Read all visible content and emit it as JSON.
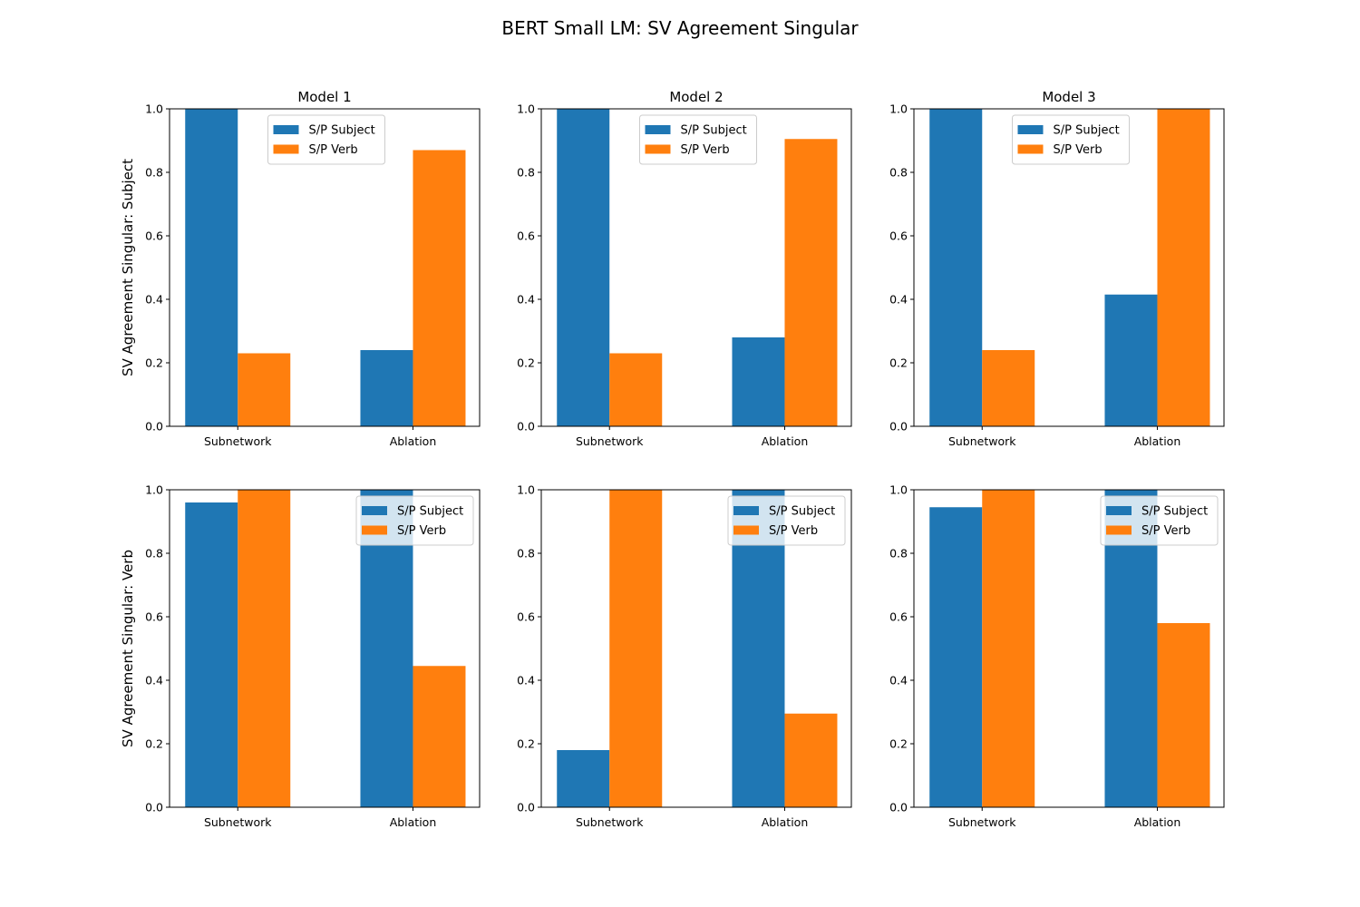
{
  "figure": {
    "title": "BERT Small LM: SV Agreement Singular"
  },
  "colors": {
    "S/P Subject": "#1f77b4",
    "S/P Verb": "#ff7f0e"
  },
  "chart_data": [
    {
      "type": "bar",
      "title": "Model 1",
      "ylabel": "SV Agreement Singular: Subject",
      "categories": [
        "Subnetwork",
        "Ablation"
      ],
      "series": [
        {
          "name": "S/P Subject",
          "values": [
            1.0,
            0.24
          ]
        },
        {
          "name": "S/P Verb",
          "values": [
            0.23,
            0.87
          ]
        }
      ],
      "ylim": [
        0,
        1.0
      ],
      "yticks": [
        "0.0",
        "0.2",
        "0.4",
        "0.6",
        "0.8",
        "1.0"
      ],
      "legend": "upper-center"
    },
    {
      "type": "bar",
      "title": "Model 2",
      "ylabel": "",
      "categories": [
        "Subnetwork",
        "Ablation"
      ],
      "series": [
        {
          "name": "S/P Subject",
          "values": [
            1.0,
            0.28
          ]
        },
        {
          "name": "S/P Verb",
          "values": [
            0.23,
            0.905
          ]
        }
      ],
      "ylim": [
        0,
        1.0
      ],
      "yticks": [
        "0.0",
        "0.2",
        "0.4",
        "0.6",
        "0.8",
        "1.0"
      ],
      "legend": "upper-center"
    },
    {
      "type": "bar",
      "title": "Model 3",
      "ylabel": "",
      "categories": [
        "Subnetwork",
        "Ablation"
      ],
      "series": [
        {
          "name": "S/P Subject",
          "values": [
            1.0,
            0.415
          ]
        },
        {
          "name": "S/P Verb",
          "values": [
            0.24,
            1.0
          ]
        }
      ],
      "ylim": [
        0,
        1.0
      ],
      "yticks": [
        "0.0",
        "0.2",
        "0.4",
        "0.6",
        "0.8",
        "1.0"
      ],
      "legend": "upper-center"
    },
    {
      "type": "bar",
      "title": "",
      "ylabel": "SV Agreement Singular: Verb",
      "categories": [
        "Subnetwork",
        "Ablation"
      ],
      "series": [
        {
          "name": "S/P Subject",
          "values": [
            0.96,
            1.0
          ]
        },
        {
          "name": "S/P Verb",
          "values": [
            1.0,
            0.445
          ]
        }
      ],
      "ylim": [
        0,
        1.0
      ],
      "yticks": [
        "0.0",
        "0.2",
        "0.4",
        "0.6",
        "0.8",
        "1.0"
      ],
      "legend": "upper-right"
    },
    {
      "type": "bar",
      "title": "",
      "ylabel": "",
      "categories": [
        "Subnetwork",
        "Ablation"
      ],
      "series": [
        {
          "name": "S/P Subject",
          "values": [
            0.18,
            1.0
          ]
        },
        {
          "name": "S/P Verb",
          "values": [
            1.0,
            0.295
          ]
        }
      ],
      "ylim": [
        0,
        1.0
      ],
      "yticks": [
        "0.0",
        "0.2",
        "0.4",
        "0.6",
        "0.8",
        "1.0"
      ],
      "legend": "upper-right"
    },
    {
      "type": "bar",
      "title": "",
      "ylabel": "",
      "categories": [
        "Subnetwork",
        "Ablation"
      ],
      "series": [
        {
          "name": "S/P Subject",
          "values": [
            0.945,
            1.0
          ]
        },
        {
          "name": "S/P Verb",
          "values": [
            1.0,
            0.58
          ]
        }
      ],
      "ylim": [
        0,
        1.0
      ],
      "yticks": [
        "0.0",
        "0.2",
        "0.4",
        "0.6",
        "0.8",
        "1.0"
      ],
      "legend": "upper-right"
    }
  ]
}
